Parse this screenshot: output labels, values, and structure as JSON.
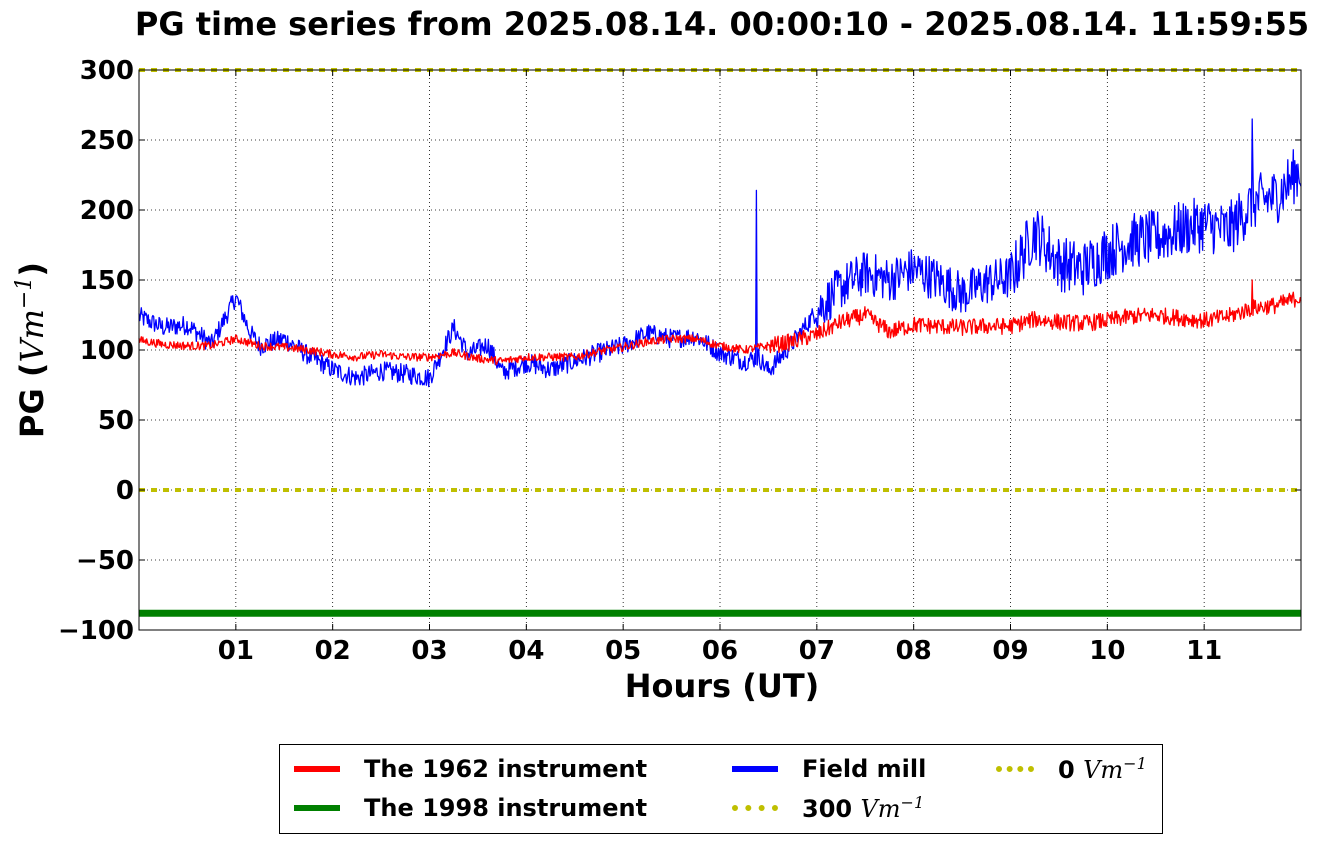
{
  "chart_data": {
    "type": "line",
    "title": "PG time series from 2025.08.14. 00:00:10 - 2025.08.14. 11:59:55",
    "xlabel": "Hours (UT)",
    "ylabel_prefix": "PG (",
    "ylabel_unit": "Vm",
    "ylabel_exp": "−1",
    "ylabel_suffix": ")",
    "xlim": [
      0,
      12
    ],
    "ylim": [
      -100,
      300
    ],
    "x_ticks": [
      1,
      2,
      3,
      4,
      5,
      6,
      7,
      8,
      9,
      10,
      11
    ],
    "x_tick_labels": [
      "01",
      "02",
      "03",
      "04",
      "05",
      "06",
      "07",
      "08",
      "09",
      "10",
      "11"
    ],
    "y_ticks": [
      -100,
      -50,
      0,
      50,
      100,
      150,
      200,
      250,
      300
    ],
    "y_tick_labels": [
      "−100",
      "−50",
      "0",
      "50",
      "100",
      "150",
      "200",
      "250",
      "300"
    ],
    "grid": true,
    "legend_position": "bottom-center, below plot",
    "series": [
      {
        "name": "The 1962 instrument",
        "color": "#ff0000",
        "x": [
          0,
          0.25,
          0.5,
          0.75,
          1.0,
          1.25,
          1.5,
          1.75,
          2.0,
          2.25,
          2.5,
          2.75,
          3.0,
          3.25,
          3.5,
          3.75,
          4.0,
          4.25,
          4.5,
          4.75,
          5.0,
          5.25,
          5.5,
          5.75,
          6.0,
          6.25,
          6.5,
          6.75,
          7.0,
          7.25,
          7.5,
          7.75,
          8.0,
          8.25,
          8.5,
          8.75,
          9.0,
          9.25,
          9.5,
          9.75,
          10.0,
          10.25,
          10.5,
          10.75,
          11.0,
          11.25,
          11.5,
          11.75,
          12.0
        ],
        "y": [
          107,
          104,
          103,
          103,
          108,
          103,
          102,
          100,
          97,
          95,
          97,
          95,
          95,
          98,
          94,
          92,
          95,
          95,
          95,
          99,
          102,
          106,
          108,
          108,
          103,
          100,
          103,
          106,
          111,
          120,
          125,
          113,
          118,
          117,
          116,
          117,
          117,
          122,
          120,
          119,
          121,
          124,
          125,
          123,
          121,
          124,
          130,
          132,
          138
        ]
      },
      {
        "name": "The 1998 instrument",
        "color": "#008000",
        "x": [
          0,
          12
        ],
        "y": [
          -88,
          -88
        ]
      },
      {
        "name": "Field mill",
        "color": "#0000ff",
        "x": [
          0,
          0.25,
          0.5,
          0.75,
          1.0,
          1.15,
          1.25,
          1.5,
          1.75,
          2.0,
          2.25,
          2.5,
          2.75,
          3.0,
          3.25,
          3.4,
          3.6,
          3.75,
          4.0,
          4.25,
          4.5,
          4.75,
          5.0,
          5.25,
          5.5,
          5.75,
          6.0,
          6.25,
          6.4,
          6.5,
          6.75,
          7.0,
          7.25,
          7.5,
          7.75,
          8.0,
          8.25,
          8.5,
          8.75,
          9.0,
          9.25,
          9.5,
          9.75,
          10.0,
          10.25,
          10.5,
          10.75,
          11.0,
          11.25,
          11.5,
          11.75,
          12.0
        ],
        "y": [
          124,
          116,
          118,
          104,
          138,
          112,
          103,
          108,
          96,
          86,
          80,
          85,
          83,
          80,
          116,
          97,
          104,
          84,
          91,
          86,
          92,
          98,
          103,
          112,
          108,
          110,
          98,
          92,
          95,
          85,
          105,
          128,
          145,
          155,
          150,
          158,
          150,
          140,
          148,
          152,
          185,
          162,
          158,
          170,
          178,
          180,
          186,
          190,
          185,
          205,
          210,
          230
        ]
      },
      {
        "name": "300 Vm−1",
        "label_prefix": "300 ",
        "label_unit": "Vm",
        "label_exp": "−1",
        "color": "#bfbf00",
        "style": "dotted",
        "x": [
          0,
          12
        ],
        "y": [
          300,
          300
        ]
      },
      {
        "name": "0 Vm−1",
        "label_prefix": "0 ",
        "label_unit": "Vm",
        "label_exp": "−1",
        "color": "#bfbf00",
        "style": "dotted",
        "x": [
          0,
          12
        ],
        "y": [
          0,
          0
        ]
      }
    ],
    "field_mill_spike": {
      "x": 6.38,
      "y": 214
    },
    "field_mill_peak": {
      "x": 11.5,
      "y": 265
    },
    "red_peak": {
      "x": 11.5,
      "y": 150
    }
  }
}
